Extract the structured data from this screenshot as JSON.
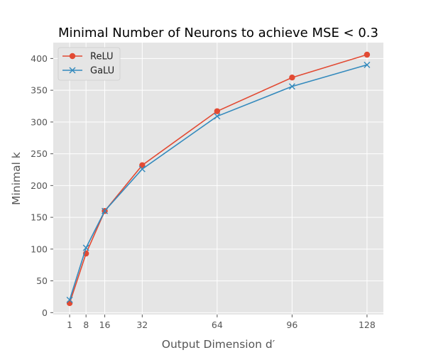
{
  "chart_data": {
    "type": "line",
    "title": "Minimal Number of Neurons to achieve MSE < 0.3",
    "xlabel": "Output Dimension d′",
    "ylabel": "Minimal k",
    "x": [
      1,
      8,
      16,
      32,
      64,
      96,
      128
    ],
    "xticks": [
      1,
      8,
      16,
      32,
      64,
      96,
      128
    ],
    "yticks": [
      0,
      50,
      100,
      150,
      200,
      250,
      300,
      350,
      400
    ],
    "xlim": [
      -6,
      135
    ],
    "ylim": [
      -3,
      425
    ],
    "grid": true,
    "legend_position": "top-left",
    "series": [
      {
        "name": "ReLU",
        "values": [
          15,
          93,
          160,
          232,
          317,
          370,
          406
        ],
        "color": "#E24A33",
        "marker": "circle"
      },
      {
        "name": "GaLU",
        "values": [
          20,
          102,
          160,
          226,
          309,
          356,
          390
        ],
        "color": "#348ABD",
        "marker": "x"
      }
    ]
  },
  "colors": {
    "plot_background": "#E5E5E5",
    "grid": "#FFFFFF"
  }
}
